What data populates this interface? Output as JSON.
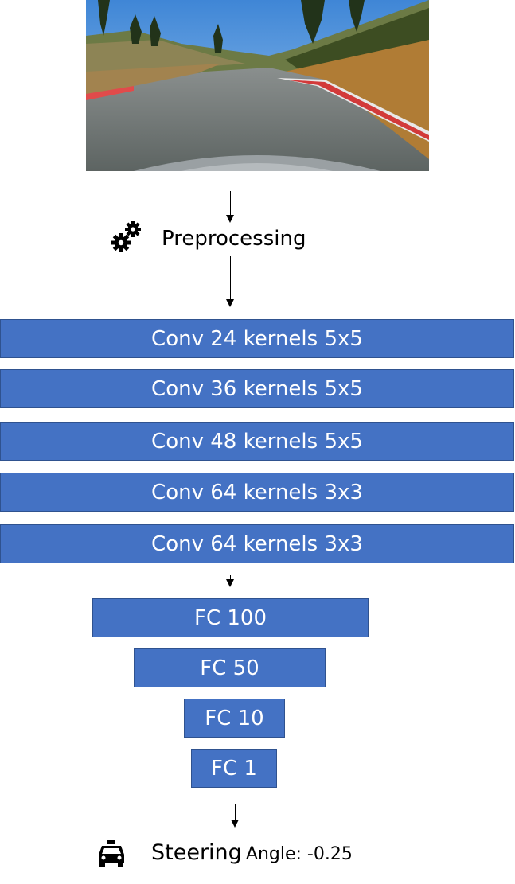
{
  "preprocessing": {
    "label": "Preprocessing",
    "icon": "gears-icon"
  },
  "conv_layers": [
    {
      "label": "Conv 24 kernels 5x5"
    },
    {
      "label": "Conv 36 kernels 5x5"
    },
    {
      "label": "Conv 48 kernels 5x5"
    },
    {
      "label": "Conv 64 kernels 3x3"
    },
    {
      "label": "Conv 64 kernels 3x3"
    }
  ],
  "fc_layers": [
    {
      "label": "FC 100"
    },
    {
      "label": "FC 50"
    },
    {
      "label": "FC 10"
    },
    {
      "label": "FC 1"
    }
  ],
  "output": {
    "label_main": "Steering",
    "label_rest": "Angle: -0.25",
    "icon": "taxi-icon"
  },
  "colors": {
    "block_fill": "#4472c4",
    "block_border": "#2f528f",
    "block_text": "#ffffff"
  }
}
